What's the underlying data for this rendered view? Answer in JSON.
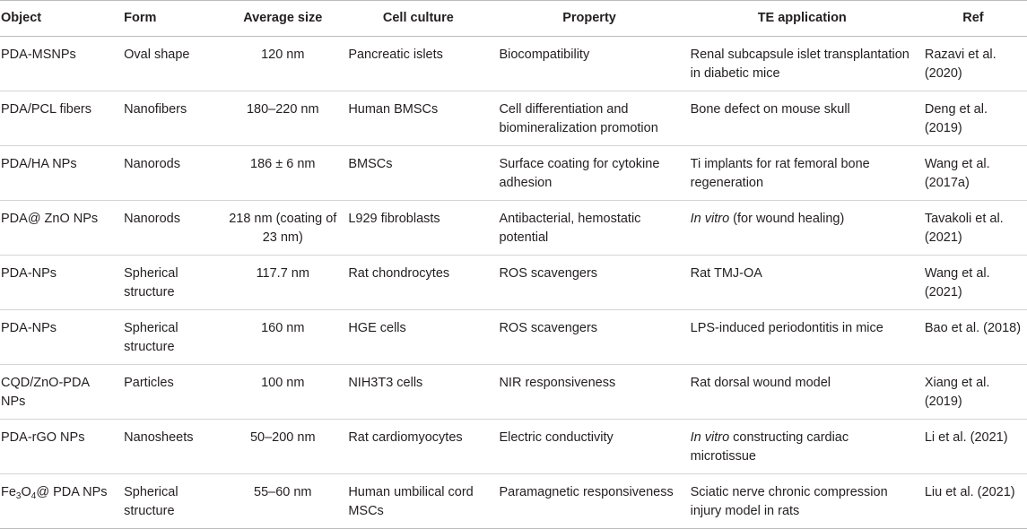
{
  "table": {
    "headers": [
      "Object",
      "Form",
      "Average size",
      "Cell culture",
      "Property",
      "TE application",
      "Ref"
    ],
    "rows": [
      {
        "object": "PDA-MSNPs",
        "form": "Oval shape",
        "size": "120 nm",
        "cell": "Pancreatic islets",
        "property": "Biocompatibility",
        "application": "Renal subcapsule islet transplantation in diabetic mice",
        "ref": "Razavi et al. (2020)"
      },
      {
        "object": "PDA/PCL fibers",
        "form": "Nanofibers",
        "size": "180–220 nm",
        "cell": "Human BMSCs",
        "property": "Cell differentiation and biomineralization promotion",
        "application": "Bone defect on mouse skull",
        "ref": "Deng et al. (2019)"
      },
      {
        "object": "PDA/HA NPs",
        "form": "Nanorods",
        "size": "186 ± 6 nm",
        "cell": "BMSCs",
        "property": "Surface coating for cytokine adhesion",
        "application": "Ti implants for rat femoral bone regeneration",
        "ref": "Wang et al. (2017a)"
      },
      {
        "object": "PDA@ ZnO NPs",
        "form": "Nanorods",
        "size": "218 nm (coating of 23 nm)",
        "cell": "L929 fibroblasts",
        "property": "Antibacterial, hemostatic potential",
        "application_italic": "In vitro",
        "application_rest": " (for wound healing)",
        "ref": "Tavakoli et al. (2021)"
      },
      {
        "object": "PDA-NPs",
        "form": "Spherical structure",
        "size": "117.7 nm",
        "cell": "Rat chondrocytes",
        "property": "ROS scavengers",
        "application": "Rat TMJ-OA",
        "ref": "Wang et al. (2021)"
      },
      {
        "object": "PDA-NPs",
        "form": "Spherical structure",
        "size": "160 nm",
        "cell": "HGE cells",
        "property": "ROS scavengers",
        "application": "LPS-induced periodontitis in mice",
        "ref": "Bao et al. (2018)"
      },
      {
        "object": "CQD/ZnO-PDA NPs",
        "form": "Particles",
        "size": "100 nm",
        "cell": "NIH3T3 cells",
        "property": "NIR responsiveness",
        "application": "Rat dorsal wound model",
        "ref": "Xiang et al. (2019)"
      },
      {
        "object": "PDA-rGO NPs",
        "form": "Nanosheets",
        "size": "50–200 nm",
        "cell": "Rat cardiomyocytes",
        "property": "Electric conductivity",
        "application_italic": "In vitro",
        "application_rest": " constructing cardiac microtissue",
        "ref": "Li et al. (2021)"
      },
      {
        "object_a": "Fe",
        "object_sub1": "3",
        "object_b": "O",
        "object_sub2": "4",
        "object_c": "@ PDA NPs",
        "form": "Spherical structure",
        "size": "55–60 nm",
        "cell": "Human umbilical cord MSCs",
        "property": "Paramagnetic responsiveness",
        "application": "Sciatic nerve chronic compression injury model in rats",
        "ref": "Liu et al. (2021)"
      }
    ]
  }
}
